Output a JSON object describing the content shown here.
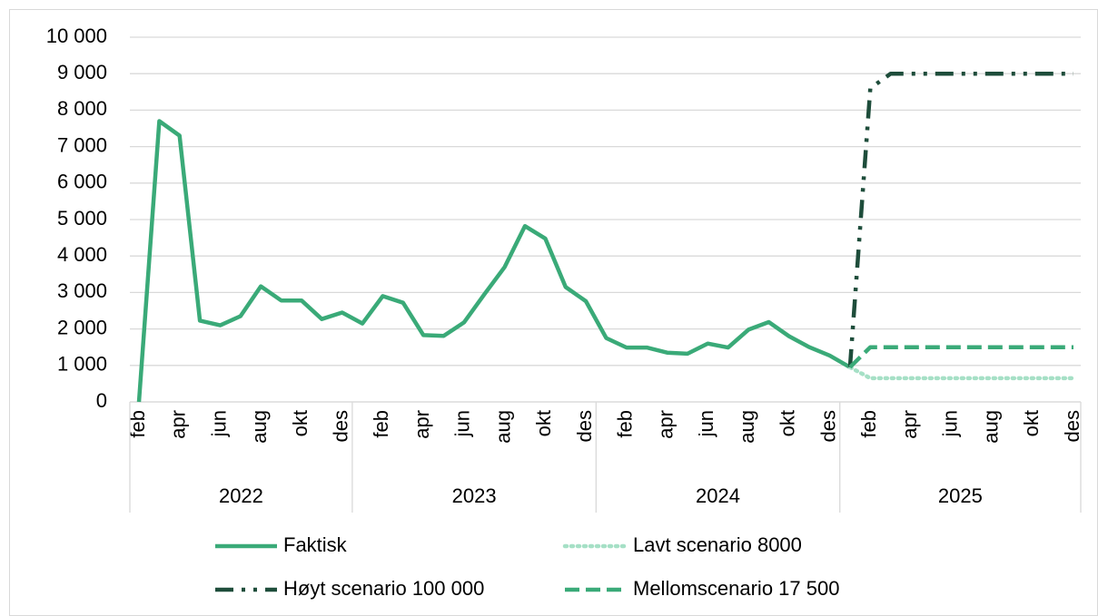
{
  "chart_data": {
    "type": "line",
    "categories": [
      "feb",
      null,
      "apr",
      null,
      "jun",
      null,
      "aug",
      null,
      "okt",
      null,
      "des",
      null,
      "feb",
      null,
      "apr",
      null,
      "jun",
      null,
      "aug",
      null,
      "okt",
      null,
      "des",
      null,
      "feb",
      null,
      "apr",
      null,
      "jun",
      null,
      "aug",
      null,
      "okt",
      null,
      "des",
      null,
      "feb",
      null,
      "apr",
      null,
      "jun",
      null,
      "aug",
      null,
      "okt",
      null,
      "des"
    ],
    "category_groups": [
      {
        "name": "2022",
        "count": 11
      },
      {
        "name": "2023",
        "count": 12
      },
      {
        "name": "2024",
        "count": 12
      },
      {
        "name": "2025",
        "count": 12
      }
    ],
    "ylim": [
      0,
      10000
    ],
    "yticks": [
      0,
      {
        "value": 1000,
        "label": "1 000"
      },
      {
        "value": 2000,
        "label": "2 000"
      },
      {
        "value": 3000,
        "label": "3 000"
      },
      {
        "value": 4000,
        "label": "4 000"
      },
      {
        "value": 5000,
        "label": "5 000"
      },
      {
        "value": 6000,
        "label": "6 000"
      },
      {
        "value": 7000,
        "label": "7 000"
      },
      {
        "value": 8000,
        "label": "8 000"
      },
      {
        "value": 9000,
        "label": "9 000"
      },
      {
        "value": 10000,
        "label": "10 000"
      }
    ],
    "grid": true,
    "legend": "bottom",
    "series": [
      {
        "name": "Faktisk",
        "color": "#3aaa78",
        "style": "solid",
        "values": [
          0,
          7700,
          7300,
          2230,
          2100,
          2350,
          3170,
          2780,
          2780,
          2270,
          2450,
          2150,
          2900,
          2720,
          1830,
          1810,
          2180,
          2950,
          3700,
          4820,
          4480,
          3150,
          2760,
          1750,
          1490,
          1490,
          1350,
          1320,
          1600,
          1490,
          1980,
          2190,
          1800,
          1500,
          1270,
          950,
          null,
          null,
          null,
          null,
          null,
          null,
          null,
          null,
          null,
          null,
          null
        ]
      },
      {
        "name": "Lavt scenario 8000",
        "color": "#a6e0c6",
        "style": "dotted",
        "values": [
          null,
          null,
          null,
          null,
          null,
          null,
          null,
          null,
          null,
          null,
          null,
          null,
          null,
          null,
          null,
          null,
          null,
          null,
          null,
          null,
          null,
          null,
          null,
          null,
          null,
          null,
          null,
          null,
          null,
          null,
          null,
          null,
          null,
          null,
          null,
          950,
          650,
          650,
          650,
          650,
          650,
          650,
          650,
          650,
          650,
          650,
          650
        ]
      },
      {
        "name": "Høyt scenario 100 000",
        "color": "#1e4d3b",
        "style": "dashdotdot",
        "values": [
          null,
          null,
          null,
          null,
          null,
          null,
          null,
          null,
          null,
          null,
          null,
          null,
          null,
          null,
          null,
          null,
          null,
          null,
          null,
          null,
          null,
          null,
          null,
          null,
          null,
          null,
          null,
          null,
          null,
          null,
          null,
          null,
          null,
          null,
          null,
          950,
          8600,
          9000,
          9000,
          9000,
          9000,
          9000,
          9000,
          9000,
          9000,
          9000,
          9000
        ]
      },
      {
        "name": "Mellomscenario 17 500",
        "color": "#3aaa78",
        "style": "dashed",
        "values": [
          null,
          null,
          null,
          null,
          null,
          null,
          null,
          null,
          null,
          null,
          null,
          null,
          null,
          null,
          null,
          null,
          null,
          null,
          null,
          null,
          null,
          null,
          null,
          null,
          null,
          null,
          null,
          null,
          null,
          null,
          null,
          null,
          null,
          null,
          null,
          950,
          1500,
          1500,
          1500,
          1500,
          1500,
          1500,
          1500,
          1500,
          1500,
          1500,
          1500
        ]
      }
    ]
  }
}
